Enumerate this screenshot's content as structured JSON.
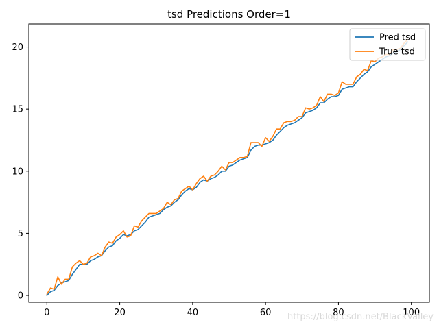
{
  "chart_data": {
    "type": "line",
    "title": "tsd Predictions Order=1",
    "xlabel": "",
    "ylabel": "",
    "xlim": [
      -4.95,
      104.95
    ],
    "ylim": [
      -0.55,
      21.85
    ],
    "xticks": [
      0,
      20,
      40,
      60,
      80,
      100
    ],
    "yticks": [
      0,
      5,
      10,
      15,
      20
    ],
    "grid": false,
    "legend_position": "top-right",
    "x": [
      0,
      1,
      2,
      3,
      4,
      5,
      6,
      7,
      8,
      9,
      10,
      11,
      12,
      13,
      14,
      15,
      16,
      17,
      18,
      19,
      20,
      21,
      22,
      23,
      24,
      25,
      26,
      27,
      28,
      29,
      30,
      31,
      32,
      33,
      34,
      35,
      36,
      37,
      38,
      39,
      40,
      41,
      42,
      43,
      44,
      45,
      46,
      47,
      48,
      49,
      50,
      51,
      52,
      53,
      54,
      55,
      56,
      57,
      58,
      59,
      60,
      61,
      62,
      63,
      64,
      65,
      66,
      67,
      68,
      69,
      70,
      71,
      72,
      73,
      74,
      75,
      76,
      77,
      78,
      79,
      80,
      81,
      82,
      83,
      84,
      85,
      86,
      87,
      88,
      89,
      90,
      91,
      92,
      93,
      94,
      95,
      96,
      97,
      98,
      99
    ],
    "series": [
      {
        "name": "Pred tsd",
        "color": "#1f77b4",
        "values": [
          0.0,
          0.3,
          0.4,
          0.8,
          1.0,
          1.1,
          1.2,
          1.7,
          2.1,
          2.5,
          2.5,
          2.5,
          2.8,
          2.9,
          3.1,
          3.2,
          3.6,
          3.9,
          4.0,
          4.4,
          4.6,
          4.9,
          4.8,
          4.9,
          5.2,
          5.3,
          5.6,
          5.9,
          6.3,
          6.4,
          6.5,
          6.6,
          6.9,
          7.1,
          7.2,
          7.5,
          7.7,
          8.1,
          8.4,
          8.6,
          8.5,
          8.7,
          9.1,
          9.3,
          9.2,
          9.4,
          9.5,
          9.7,
          10.0,
          10.0,
          10.4,
          10.5,
          10.7,
          10.9,
          11.0,
          11.1,
          11.7,
          12.0,
          12.1,
          12.1,
          12.2,
          12.3,
          12.5,
          12.9,
          13.2,
          13.5,
          13.7,
          13.8,
          13.9,
          14.1,
          14.3,
          14.7,
          14.8,
          14.9,
          15.1,
          15.5,
          15.5,
          15.8,
          16.0,
          16.0,
          16.1,
          16.6,
          16.7,
          16.8,
          16.8,
          17.2,
          17.5,
          17.8,
          18.0,
          18.4,
          18.6,
          18.8,
          19.0,
          19.2,
          19.3,
          19.5,
          19.6,
          19.8,
          20.1,
          20.4
        ]
      },
      {
        "name": "True tsd",
        "color": "#ff7f0e",
        "values": [
          0.1,
          0.6,
          0.5,
          1.5,
          0.9,
          1.3,
          1.3,
          2.3,
          2.6,
          2.8,
          2.5,
          2.6,
          3.1,
          3.2,
          3.4,
          3.2,
          3.9,
          4.3,
          4.2,
          4.7,
          4.9,
          5.2,
          4.7,
          4.8,
          5.6,
          5.5,
          6.0,
          6.3,
          6.6,
          6.6,
          6.6,
          6.8,
          7.0,
          7.5,
          7.3,
          7.7,
          7.8,
          8.4,
          8.6,
          8.8,
          8.5,
          9.0,
          9.4,
          9.6,
          9.2,
          9.6,
          9.7,
          10.0,
          10.4,
          10.1,
          10.7,
          10.7,
          10.9,
          11.1,
          11.1,
          11.2,
          12.3,
          12.3,
          12.3,
          12.0,
          12.7,
          12.4,
          12.8,
          13.4,
          13.4,
          13.9,
          14.0,
          14.0,
          14.1,
          14.4,
          14.4,
          15.1,
          15.0,
          15.1,
          15.3,
          16.0,
          15.6,
          16.2,
          16.2,
          16.1,
          16.3,
          17.2,
          17.0,
          17.0,
          17.0,
          17.6,
          17.8,
          18.2,
          18.1,
          18.9,
          18.8,
          19.1,
          19.2,
          19.4,
          19.4,
          19.8,
          19.8,
          19.9,
          20.3,
          20.6
        ]
      }
    ]
  },
  "watermark": "https://blog.csdn.net/BlackValley"
}
